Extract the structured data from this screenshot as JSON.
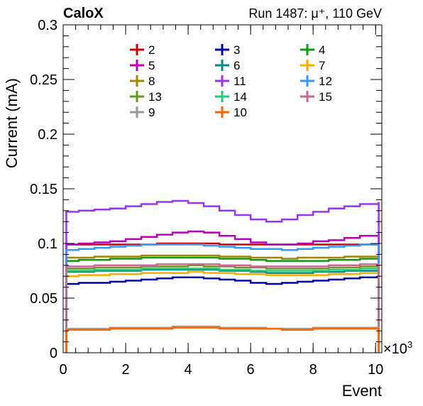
{
  "header": {
    "experiment": "CaloX",
    "run_info": "Run 1487:   μ⁺, 110 GeV"
  },
  "chart_data": {
    "type": "line",
    "xlabel": "Event",
    "ylabel": "Current (mA)",
    "x_multiplier_label": "×10",
    "x_multiplier_exponent": "3",
    "xlim": [
      0,
      10.2
    ],
    "ylim": [
      0,
      0.3
    ],
    "x_ticks": [
      0,
      2,
      4,
      6,
      8,
      10
    ],
    "x_tick_labels": [
      "0",
      "2",
      "4",
      "6",
      "8",
      "10"
    ],
    "y_ticks": [
      0,
      0.05,
      0.1,
      0.15,
      0.2,
      0.25,
      0.3
    ],
    "y_tick_labels": [
      "0",
      "0.05",
      "0.1",
      "0.15",
      "0.2",
      "0.25",
      "0.3"
    ],
    "x": [
      0.1,
      0.5,
      1.0,
      1.5,
      2.0,
      2.5,
      3.0,
      3.5,
      4.0,
      4.5,
      5.0,
      5.5,
      6.0,
      6.5,
      7.0,
      7.5,
      8.0,
      8.5,
      9.0,
      9.5,
      10.1
    ],
    "x_start": 0.1,
    "x_end": 10.1,
    "legend_location": "top",
    "series": [
      {
        "name": "2",
        "color": "#cc0000",
        "values": [
          0.099,
          0.099,
          0.099,
          0.099,
          0.099,
          0.099,
          0.1,
          0.1,
          0.1,
          0.1,
          0.099,
          0.099,
          0.099,
          0.099,
          0.099,
          0.099,
          0.099,
          0.099,
          0.099,
          0.099,
          0.099
        ]
      },
      {
        "name": "3",
        "color": "#0000aa",
        "values": [
          0.063,
          0.064,
          0.064,
          0.065,
          0.066,
          0.067,
          0.068,
          0.069,
          0.069,
          0.068,
          0.067,
          0.066,
          0.064,
          0.063,
          0.064,
          0.065,
          0.066,
          0.067,
          0.068,
          0.069,
          0.07
        ]
      },
      {
        "name": "4",
        "color": "#119911",
        "values": [
          0.084,
          0.085,
          0.085,
          0.086,
          0.086,
          0.087,
          0.087,
          0.087,
          0.087,
          0.087,
          0.086,
          0.086,
          0.085,
          0.084,
          0.084,
          0.084,
          0.084,
          0.085,
          0.085,
          0.086,
          0.087
        ]
      },
      {
        "name": "5",
        "color": "#bb00bb",
        "values": [
          0.099,
          0.1,
          0.101,
          0.102,
          0.104,
          0.106,
          0.108,
          0.11,
          0.111,
          0.11,
          0.107,
          0.104,
          0.101,
          0.099,
          0.099,
          0.1,
          0.102,
          0.103,
          0.105,
          0.107,
          0.11
        ]
      },
      {
        "name": "6",
        "color": "#008888",
        "values": [
          0.074,
          0.074,
          0.075,
          0.075,
          0.075,
          0.076,
          0.076,
          0.076,
          0.076,
          0.076,
          0.075,
          0.075,
          0.074,
          0.073,
          0.073,
          0.073,
          0.074,
          0.074,
          0.075,
          0.075,
          0.076
        ]
      },
      {
        "name": "7",
        "color": "#ffaa00",
        "values": [
          0.07,
          0.071,
          0.071,
          0.072,
          0.072,
          0.073,
          0.073,
          0.073,
          0.074,
          0.073,
          0.073,
          0.072,
          0.072,
          0.071,
          0.071,
          0.071,
          0.071,
          0.072,
          0.072,
          0.073,
          0.074
        ]
      },
      {
        "name": "8",
        "color": "#998800",
        "values": [
          0.087,
          0.087,
          0.088,
          0.088,
          0.088,
          0.089,
          0.089,
          0.089,
          0.089,
          0.089,
          0.088,
          0.088,
          0.087,
          0.087,
          0.086,
          0.087,
          0.087,
          0.087,
          0.088,
          0.088,
          0.089
        ]
      },
      {
        "name": "11",
        "color": "#9933ee",
        "values": [
          0.129,
          0.13,
          0.131,
          0.132,
          0.134,
          0.136,
          0.138,
          0.139,
          0.137,
          0.134,
          0.13,
          0.126,
          0.122,
          0.12,
          0.122,
          0.126,
          0.129,
          0.132,
          0.134,
          0.136,
          0.138
        ]
      },
      {
        "name": "12",
        "color": "#3399ff",
        "values": [
          0.094,
          0.095,
          0.096,
          0.097,
          0.098,
          0.099,
          0.099,
          0.099,
          0.099,
          0.098,
          0.097,
          0.096,
          0.095,
          0.095,
          0.094,
          0.095,
          0.096,
          0.097,
          0.098,
          0.099,
          0.1
        ]
      },
      {
        "name": "13",
        "color": "#669922",
        "values": [
          0.077,
          0.077,
          0.078,
          0.078,
          0.078,
          0.079,
          0.079,
          0.079,
          0.08,
          0.079,
          0.079,
          0.078,
          0.078,
          0.077,
          0.077,
          0.077,
          0.077,
          0.078,
          0.078,
          0.079,
          0.08
        ]
      },
      {
        "name": "14",
        "color": "#22cc77",
        "values": [
          0.075,
          0.075,
          0.076,
          0.076,
          0.076,
          0.077,
          0.077,
          0.077,
          0.077,
          0.077,
          0.076,
          0.076,
          0.075,
          0.075,
          0.075,
          0.075,
          0.075,
          0.076,
          0.076,
          0.077,
          0.077
        ]
      },
      {
        "name": "15",
        "color": "#cc6699",
        "values": [
          0.079,
          0.079,
          0.08,
          0.08,
          0.08,
          0.08,
          0.081,
          0.081,
          0.081,
          0.081,
          0.08,
          0.08,
          0.079,
          0.079,
          0.079,
          0.079,
          0.079,
          0.08,
          0.08,
          0.081,
          0.081
        ]
      },
      {
        "name": "9",
        "color": "#999999",
        "values": [
          0.022,
          0.022,
          0.022,
          0.023,
          0.023,
          0.023,
          0.023,
          0.024,
          0.024,
          0.024,
          0.023,
          0.023,
          0.023,
          0.022,
          0.022,
          0.022,
          0.023,
          0.023,
          0.023,
          0.023,
          0.024
        ]
      },
      {
        "name": "10",
        "color": "#ff6600",
        "values": [
          0.021,
          0.021,
          0.021,
          0.022,
          0.022,
          0.022,
          0.022,
          0.023,
          0.023,
          0.023,
          0.022,
          0.022,
          0.022,
          0.022,
          0.021,
          0.021,
          0.022,
          0.022,
          0.022,
          0.022,
          0.022
        ]
      }
    ]
  }
}
